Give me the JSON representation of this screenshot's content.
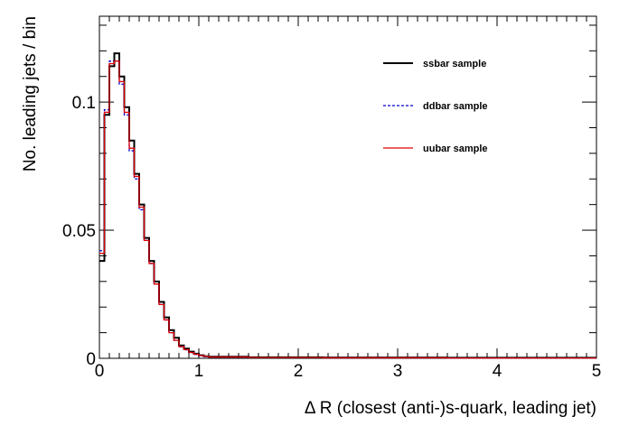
{
  "chart_data": {
    "type": "line",
    "xlabel": "Δ R (closest (anti-)s-quark, leading  jet)",
    "ylabel": "No. leading jets / bin",
    "xlim": [
      0,
      5
    ],
    "ylim": [
      0,
      0.1335
    ],
    "x_ticks": [
      {
        "value": 0,
        "label": "0"
      },
      {
        "value": 1,
        "label": "1"
      },
      {
        "value": 2,
        "label": "2"
      },
      {
        "value": 3,
        "label": "3"
      },
      {
        "value": 4,
        "label": "4"
      },
      {
        "value": 5,
        "label": "5"
      }
    ],
    "y_ticks": [
      {
        "value": 0,
        "label": "0"
      },
      {
        "value": 0.05,
        "label": "0.05"
      },
      {
        "value": 0.1,
        "label": "0.1"
      }
    ],
    "bin_edges": [
      0,
      0.05,
      0.1,
      0.15,
      0.2,
      0.25,
      0.3,
      0.35,
      0.4,
      0.45,
      0.5,
      0.55,
      0.6,
      0.65,
      0.7,
      0.75,
      0.8,
      0.85,
      0.9,
      0.95,
      1.0,
      1.05,
      1.1,
      1.5,
      2.25,
      3.5,
      5
    ],
    "grid": false,
    "legend_position": "top-right",
    "series": [
      {
        "name": "ssbar sample",
        "color": "#000000",
        "style": "solid",
        "values": [
          0.038,
          0.095,
          0.114,
          0.119,
          0.11,
          0.098,
          0.085,
          0.072,
          0.06,
          0.047,
          0.038,
          0.03,
          0.022,
          0.016,
          0.011,
          0.008,
          0.005,
          0.0038,
          0.0026,
          0.0018,
          0.0012,
          0.0008,
          0.0006,
          0.0004,
          0.0003,
          0.0002
        ]
      },
      {
        "name": "ddbar sample",
        "color": "#0000cc",
        "style": "dashed",
        "values": [
          0.042,
          0.097,
          0.116,
          0.116,
          0.107,
          0.095,
          0.081,
          0.07,
          0.058,
          0.046,
          0.037,
          0.029,
          0.021,
          0.015,
          0.01,
          0.007,
          0.0045,
          0.0033,
          0.0022,
          0.0015,
          0.001,
          0.0007,
          0.0005,
          0.0003,
          0.0002,
          0.0001
        ]
      },
      {
        "name": "uubar sample",
        "color": "#dd0000",
        "style": "solid",
        "values": [
          0.041,
          0.096,
          0.115,
          0.116,
          0.108,
          0.096,
          0.082,
          0.071,
          0.059,
          0.046,
          0.037,
          0.029,
          0.021,
          0.015,
          0.01,
          0.007,
          0.0046,
          0.0034,
          0.0023,
          0.0016,
          0.0011,
          0.0008,
          0.0005,
          0.0003,
          0.0002,
          0.0001
        ]
      }
    ]
  }
}
